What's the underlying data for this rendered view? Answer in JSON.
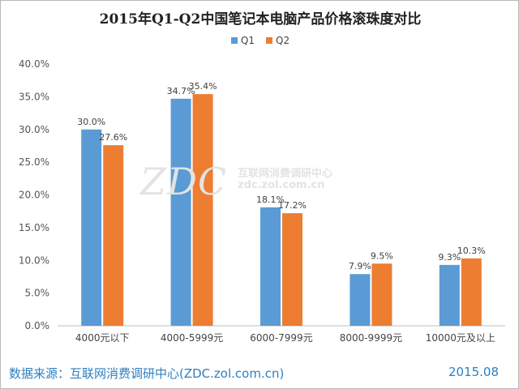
{
  "chart_data": {
    "type": "bar",
    "title": "2015年Q1-Q2中国笔记本电脑产品价格滚珠度对比",
    "categories": [
      "4000元以下",
      "4000-5999元",
      "6000-7999元",
      "8000-9999元",
      "10000元及以上"
    ],
    "series": [
      {
        "name": "Q1",
        "color": "#5b9bd5",
        "values": [
          30.0,
          34.7,
          18.1,
          7.9,
          9.3
        ],
        "labels": [
          "30.0%",
          "34.7%",
          "18.1%",
          "7.9%",
          "9.3%"
        ]
      },
      {
        "name": "Q2",
        "color": "#ed7d31",
        "values": [
          27.6,
          35.4,
          17.2,
          9.5,
          10.3
        ],
        "labels": [
          "27.6%",
          "35.4%",
          "17.2%",
          "9.5%",
          "10.3%"
        ]
      }
    ],
    "ylim": [
      0,
      40
    ],
    "yticks": [
      "0.0%",
      "5.0%",
      "10.0%",
      "15.0%",
      "20.0%",
      "25.0%",
      "30.0%",
      "35.0%",
      "40.0%"
    ],
    "legend_position": "top-center",
    "grid": false
  },
  "watermark": {
    "logo": "ZDC",
    "text": "互联网消费调研中心",
    "url": "zdc.zol.com.cn"
  },
  "footer": {
    "source": "数据来源：互联网消费调研中心(ZDC.zol.com.cn)",
    "date": "2015.08"
  }
}
